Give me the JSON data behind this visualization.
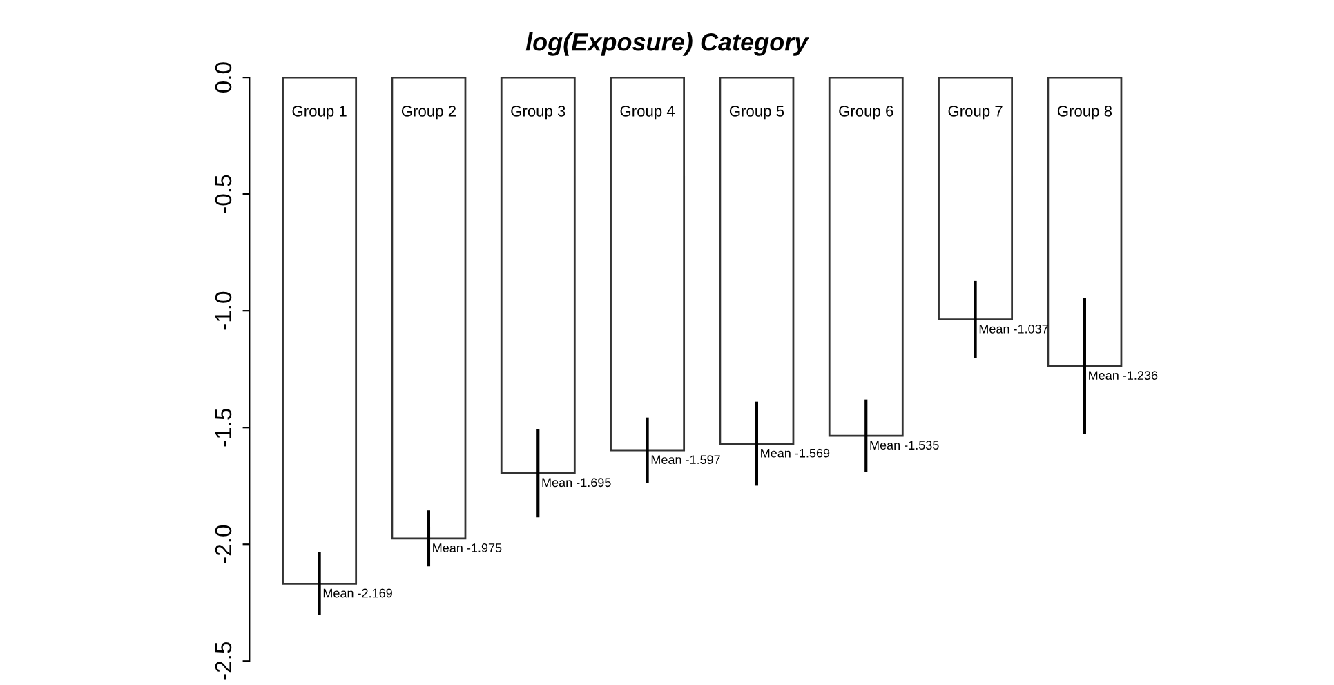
{
  "chart_data": {
    "type": "bar",
    "title": "log(Exposure) Category",
    "categories": [
      "Group 1",
      "Group 2",
      "Group 3",
      "Group 4",
      "Group 5",
      "Group 6",
      "Group 7",
      "Group 8"
    ],
    "values": [
      -2.169,
      -1.975,
      -1.695,
      -1.597,
      -1.569,
      -1.535,
      -1.037,
      -1.236
    ],
    "errors": [
      0.135,
      0.12,
      0.19,
      0.14,
      0.18,
      0.155,
      0.165,
      0.29
    ],
    "value_labels": [
      "Mean -2.169",
      "Mean -1.975",
      "Mean -1.695",
      "Mean -1.597",
      "Mean -1.569",
      "Mean -1.535",
      "Mean -1.037",
      "Mean -1.236"
    ],
    "color": "#ffffff",
    "ylim": [
      -2.5,
      0.0
    ],
    "yticks": [
      {
        "value": 0.0,
        "label": "0.0"
      },
      -0.5,
      {
        "value": -1.0,
        "label": "-1.0"
      },
      -1.5,
      {
        "value": -2.0,
        "label": "-2.0"
      },
      -2.5
    ],
    "tick_labels": "y",
    "grid": false,
    "legend": false
  }
}
